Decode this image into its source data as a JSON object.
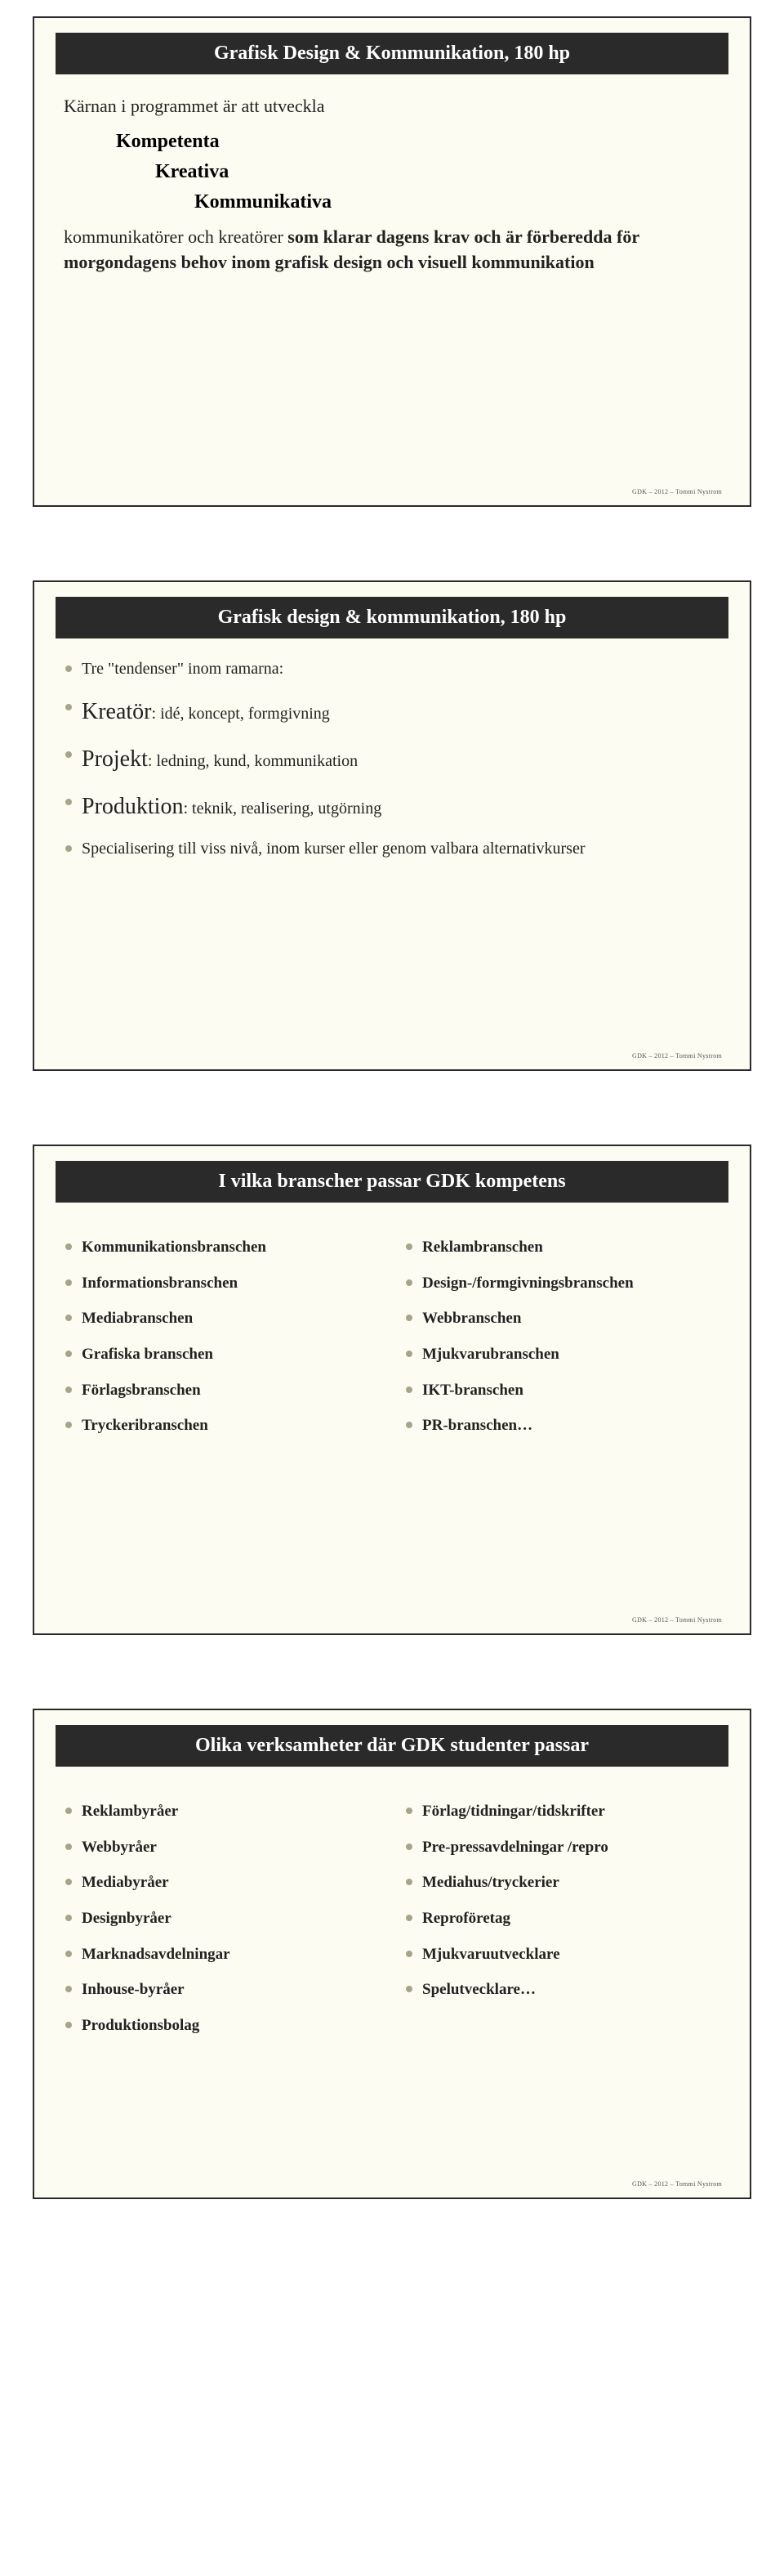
{
  "footer": "GDK – 2012 – Tommi Nystrom",
  "slide1": {
    "title": "Grafisk Design & Kommunikation, 180 hp",
    "line1": "Kärnan i programmet är att utveckla",
    "k1": "Kompetenta",
    "k2": "Kreativa",
    "k3": "Kommunikativa",
    "para2a": "kommunikatörer och kreatörer ",
    "para2b": "som klarar dagens krav och är förberedda för morgondagens behov inom grafisk design och visuell kommunikation"
  },
  "slide2": {
    "title": "Grafisk design & kommunikation, 180 hp",
    "b1": "Tre \"tendenser\" inom ramarna:",
    "b2_term": "Kreatör",
    "b2_rest": ": idé, koncept, formgivning",
    "b3_term": "Projekt",
    "b3_rest": ": ledning, kund, kommunikation",
    "b4_term": "Produktion",
    "b4_rest": ": teknik, realisering, utgörning",
    "b5": "Specialisering till viss nivå, inom kurser eller genom valbara alternativkurser"
  },
  "slide3": {
    "title": "I vilka branscher passar GDK kompetens",
    "left": [
      "Kommunikationsbranschen",
      "Informationsbranschen",
      "Mediabranschen",
      "Grafiska branschen",
      "Förlagsbranschen",
      "Tryckeribranschen"
    ],
    "right": [
      "Reklambranschen",
      "Design-/formgivningsbranschen",
      "Webbranschen",
      "Mjukvarubranschen",
      "IKT-branschen",
      "PR-branschen…"
    ]
  },
  "slide4": {
    "title": "Olika verksamheter där GDK studenter passar",
    "left": [
      "Reklambyråer",
      "Webbyråer",
      "Mediabyråer",
      "Designbyråer",
      "Marknadsavdelningar",
      "Inhouse-byråer",
      "Produktionsbolag"
    ],
    "right": [
      "Förlag/tidningar/tidskrifter",
      "Pre-pressavdelningar /repro",
      "Mediahus/tryckerier",
      "Reproföretag",
      "Mjukvaruutvecklare",
      "Spelutvecklare…"
    ]
  }
}
